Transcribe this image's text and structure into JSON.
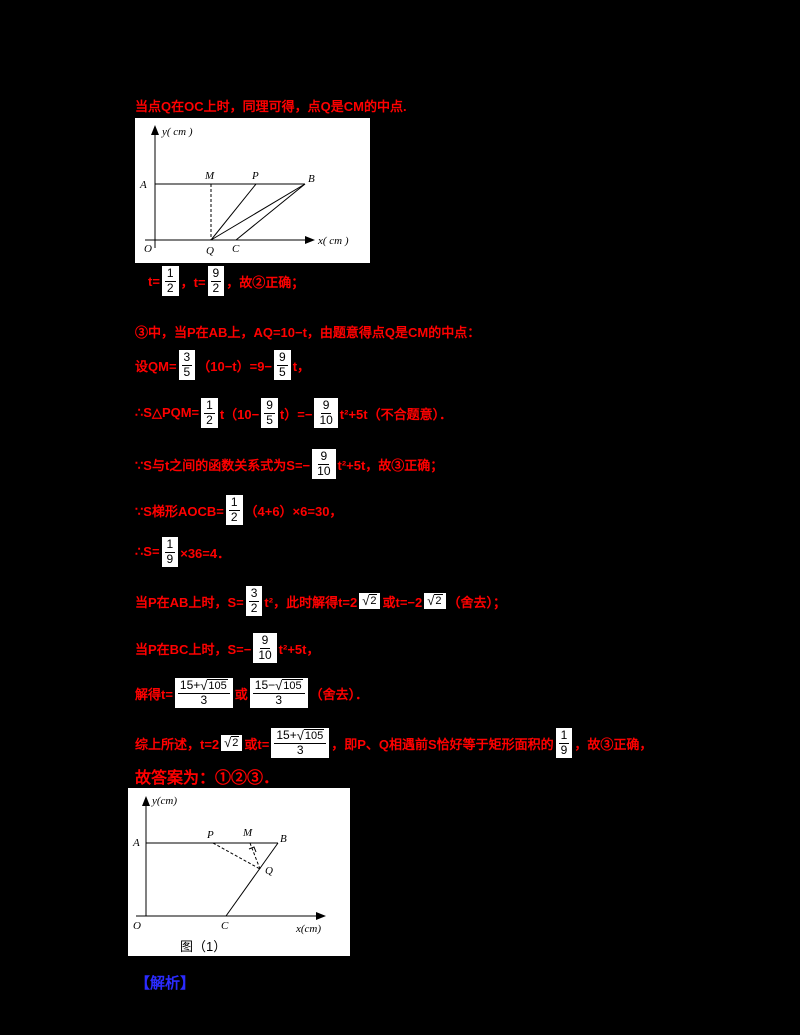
{
  "colors": {
    "background": "#000000",
    "solution_text": "#ff0000",
    "math_box_bg": "#ffffff",
    "math_box_text": "#000000",
    "analysis_label": "#2b2bff"
  },
  "lines": [
    {
      "segments": [
        {
          "type": "text",
          "v": "当点Q在OC上时，同理可得，点Q是CM的中点."
        }
      ]
    },
    {
      "segments": [
        {
          "type": "text",
          "v": "t="
        },
        {
          "type": "frac",
          "n": "1",
          "d": "2"
        },
        {
          "type": "text",
          "v": "，t="
        },
        {
          "type": "frac",
          "n": "9",
          "d": "2"
        },
        {
          "type": "text",
          "v": "，故②正确；"
        }
      ]
    },
    {
      "segments": [
        {
          "type": "text",
          "v": "③中，当P在AB上，AQ=10−t，由题意得点Q是CM的中点："
        }
      ]
    },
    {
      "segments": [
        {
          "type": "text",
          "v": "设QM="
        },
        {
          "type": "frac",
          "n": "3",
          "d": "5"
        },
        {
          "type": "text",
          "v": "（10−t）=9−"
        },
        {
          "type": "frac",
          "n": "9",
          "d": "5"
        },
        {
          "type": "text",
          "v": "t，"
        }
      ]
    },
    {
      "segments": [
        {
          "type": "text",
          "v": "∴S△PQM="
        },
        {
          "type": "frac",
          "n": "1",
          "d": "2"
        },
        {
          "type": "text",
          "v": "t（10−"
        },
        {
          "type": "frac",
          "n": "9",
          "d": "5"
        },
        {
          "type": "text",
          "v": "t）=−"
        },
        {
          "type": "frac",
          "n": "9",
          "d": "10"
        },
        {
          "type": "text",
          "v": "t²+5t（不合题意）．"
        }
      ]
    },
    {
      "segments": [
        {
          "type": "text",
          "v": "∵S与t之间的函数关系式为S=−"
        },
        {
          "type": "frac",
          "n": "9",
          "d": "10"
        },
        {
          "type": "text",
          "v": "t²+5t，故③正确；"
        }
      ]
    },
    {
      "segments": [
        {
          "type": "text",
          "v": "∵S梯形AOCB="
        },
        {
          "type": "frac",
          "n": "1",
          "d": "2"
        },
        {
          "type": "text",
          "v": "（4+6）×6=30，"
        }
      ]
    },
    {
      "segments": [
        {
          "type": "text",
          "v": "∴S="
        },
        {
          "type": "frac",
          "n": "1",
          "d": "9"
        },
        {
          "type": "text",
          "v": "×36=4．"
        }
      ]
    },
    {
      "segments": [
        {
          "type": "text",
          "v": "当P在AB上时，S="
        },
        {
          "type": "frac",
          "n": "3",
          "d": "2"
        },
        {
          "type": "text",
          "v": "t²，此时解得t=2"
        },
        {
          "type": "sqrt",
          "rad": "2"
        },
        {
          "type": "text",
          "v": "或t=−2"
        },
        {
          "type": "sqrt",
          "rad": "2"
        },
        {
          "type": "text",
          "v": "（舍去）；"
        }
      ]
    },
    {
      "segments": [
        {
          "type": "text",
          "v": "当P在BC上时，S=−"
        },
        {
          "type": "frac",
          "n": "9",
          "d": "10"
        },
        {
          "type": "text",
          "v": "t²+5t，"
        }
      ]
    },
    {
      "segments": [
        {
          "type": "text",
          "v": "解得t="
        },
        {
          "type": "fracsqrt",
          "npre": "15+",
          "nrad": "105",
          "d": "3"
        },
        {
          "type": "text",
          "v": "或"
        },
        {
          "type": "fracsqrt",
          "npre": "15−",
          "nrad": "105",
          "d": "3"
        },
        {
          "type": "text",
          "v": "（舍去）．"
        }
      ]
    },
    {
      "segments": [
        {
          "type": "text",
          "v": "综上所述，t=2"
        },
        {
          "type": "sqrt",
          "rad": "2"
        },
        {
          "type": "text",
          "v": "或t="
        },
        {
          "type": "fracsqrt",
          "npre": "15+",
          "nrad": "105",
          "d": "3"
        },
        {
          "type": "text",
          "v": "，即P、Q相遇前S恰好等于矩形面积的"
        },
        {
          "type": "frac",
          "n": "1",
          "d": "9"
        },
        {
          "type": "text",
          "v": "，故③正确，"
        }
      ]
    },
    {
      "segments": [
        {
          "type": "text",
          "v": "故答案为：①②③．"
        }
      ]
    }
  ],
  "diagram1": {
    "y_axis_label": "y( cm )",
    "x_axis_label": "x( cm )",
    "labels": {
      "A": "A",
      "M": "M",
      "P": "P",
      "B": "B",
      "O": "O",
      "Q": "Q",
      "C": "C"
    }
  },
  "diagram2": {
    "y_axis_label": "y(cm)",
    "x_axis_label": "x(cm)",
    "labels": {
      "A": "A",
      "P": "P",
      "M": "M",
      "B": "B",
      "Q": "Q",
      "O": "O",
      "C": "C"
    },
    "caption": "图（1）"
  },
  "analysis_label": "【解析】"
}
